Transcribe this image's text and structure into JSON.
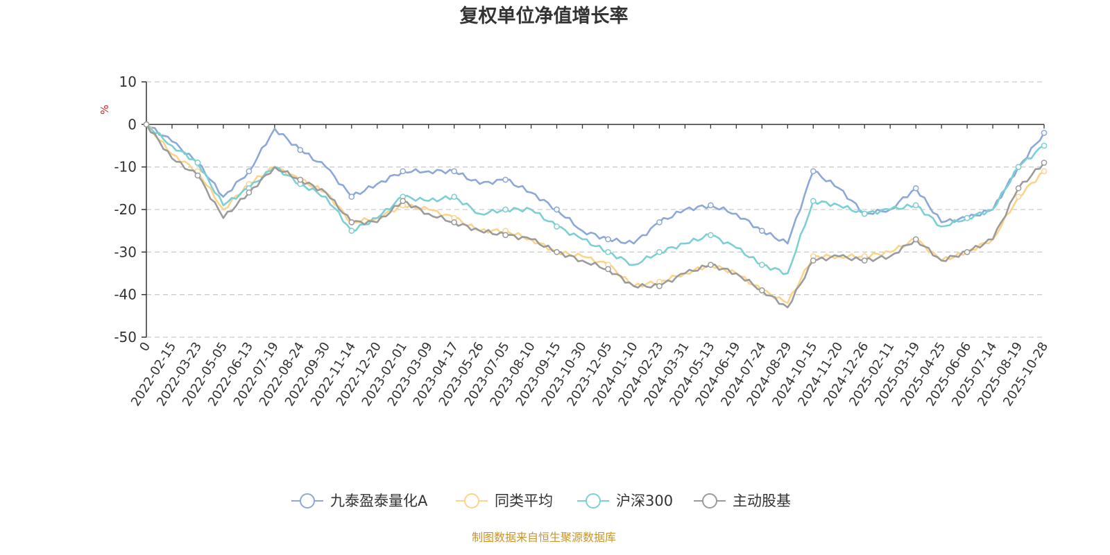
{
  "chart_data": {
    "type": "line",
    "title": "复权单位净值增长率",
    "ylabel": "%",
    "ylim": [
      -50,
      10
    ],
    "yticks": [
      10,
      0,
      -10,
      -20,
      -30,
      -40,
      -50
    ],
    "x_tick_labels": [
      "0",
      "2022-02-15",
      "2022-03-23",
      "2022-05-05",
      "2022-06-13",
      "2022-07-19",
      "2022-08-24",
      "2022-09-30",
      "2022-11-14",
      "2022-12-20",
      "2023-02-01",
      "2023-03-09",
      "2023-04-17",
      "2023-05-26",
      "2023-07-05",
      "2023-08-10",
      "2023-09-15",
      "2023-10-30",
      "2023-12-05",
      "2024-01-10",
      "2024-02-23",
      "2024-03-31",
      "2024-05-13",
      "2024-06-19",
      "2024-07-24",
      "2024-08-29",
      "2024-10-15",
      "2024-11-20",
      "2024-12-26",
      "2025-02-11",
      "2025-03-19",
      "2025-04-25",
      "2025-06-06",
      "2025-07-14",
      "2025-08-19",
      "2025-10-28"
    ],
    "x": [
      0,
      2,
      4,
      6,
      8,
      10,
      12,
      14,
      16,
      18,
      20,
      22,
      24,
      26,
      28,
      30,
      32,
      34,
      36,
      38,
      40,
      42,
      44,
      46,
      48,
      50,
      52,
      54,
      56,
      58,
      60,
      62,
      64,
      66,
      68,
      70
    ],
    "series": [
      {
        "name": "九泰盈泰量化A",
        "color": "#8ca8d8",
        "values": [
          0,
          -4,
          -9,
          -17,
          -11,
          -1,
          -6,
          -10,
          -17,
          -14,
          -11,
          -11,
          -11,
          -14,
          -13,
          -16,
          -20,
          -25,
          -27,
          -28,
          -23,
          -20,
          -19,
          -21,
          -25,
          -28,
          -11,
          -15,
          -21,
          -20,
          -15,
          -23,
          -22,
          -20,
          -10,
          -2
        ]
      },
      {
        "name": "同类平均",
        "color": "#fbd48b",
        "values": [
          0,
          -7,
          -11,
          -20,
          -14,
          -10,
          -13,
          -16,
          -23,
          -22,
          -19,
          -20,
          -22,
          -25,
          -25,
          -27,
          -30,
          -31,
          -33,
          -38,
          -37,
          -35,
          -33,
          -35,
          -39,
          -42,
          -31,
          -31,
          -31,
          -30,
          -27,
          -32,
          -30,
          -27,
          -17,
          -11
        ]
      },
      {
        "name": "沪深300",
        "color": "#7ccfd2",
        "values": [
          0,
          -5,
          -9,
          -19,
          -15,
          -10,
          -14,
          -17,
          -25,
          -22,
          -17,
          -18,
          -17,
          -21,
          -20,
          -20,
          -24,
          -27,
          -30,
          -33,
          -30,
          -28,
          -26,
          -29,
          -33,
          -35,
          -18,
          -19,
          -21,
          -20,
          -19,
          -24,
          -22,
          -20,
          -10,
          -5
        ]
      },
      {
        "name": "主动股基",
        "color": "#9b9b9b",
        "values": [
          0,
          -8,
          -12,
          -22,
          -16,
          -10,
          -13,
          -16,
          -23,
          -23,
          -18,
          -21,
          -23,
          -25,
          -26,
          -27,
          -30,
          -32,
          -34,
          -38,
          -38,
          -35,
          -33,
          -35,
          -39,
          -43,
          -32,
          -31,
          -32,
          -31,
          -27,
          -32,
          -30,
          -27,
          -15,
          -9
        ]
      }
    ],
    "legend": [
      "九泰盈泰量化A",
      "同类平均",
      "沪深300",
      "主动股基"
    ],
    "legend_position": "bottom-center",
    "grid": true
  },
  "unit_label": "%",
  "source_text": "制图数据来自恒生聚源数据库",
  "colors": {
    "unit": "#e02020",
    "source": "#c9952b",
    "axis": "#333333",
    "grid": "#cccccc"
  }
}
